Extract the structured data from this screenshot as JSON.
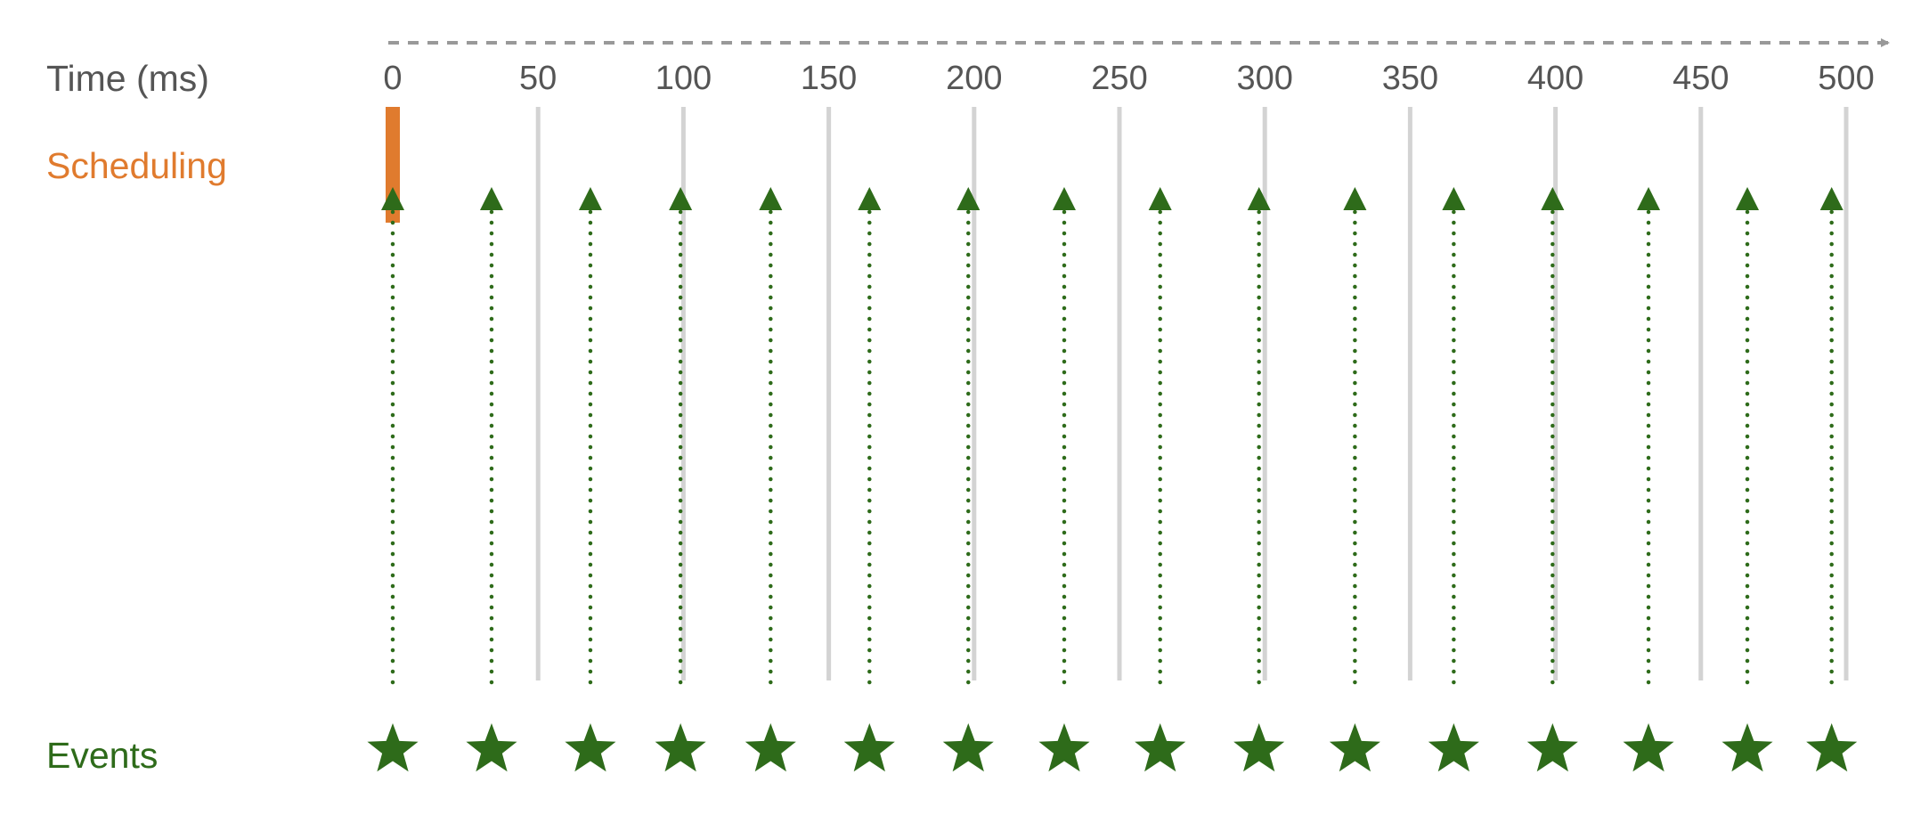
{
  "labels": {
    "time": "Time (ms)",
    "scheduling": "Scheduling",
    "events": "Events"
  },
  "colors": {
    "axis": "#999999",
    "text": "#555555",
    "grid": "#d3d3d3",
    "scheduling": "#e07b2e",
    "events": "#2e6b1a"
  },
  "axis": {
    "unit": "ms",
    "range": [
      0,
      500
    ],
    "ticks": [
      0,
      50,
      100,
      150,
      200,
      250,
      300,
      350,
      400,
      450,
      500
    ],
    "tick_labels": [
      "0",
      "50",
      "100",
      "150",
      "200",
      "250",
      "300",
      "350",
      "400",
      "450",
      "500"
    ]
  },
  "scheduling": {
    "at_ms": 0
  },
  "events": {
    "times_ms": [
      0,
      34,
      68,
      99,
      130,
      164,
      198,
      231,
      264,
      298,
      331,
      365,
      399,
      432,
      466,
      495
    ],
    "marker": "star-icon",
    "trigger_marker": "triangle-up-icon"
  }
}
